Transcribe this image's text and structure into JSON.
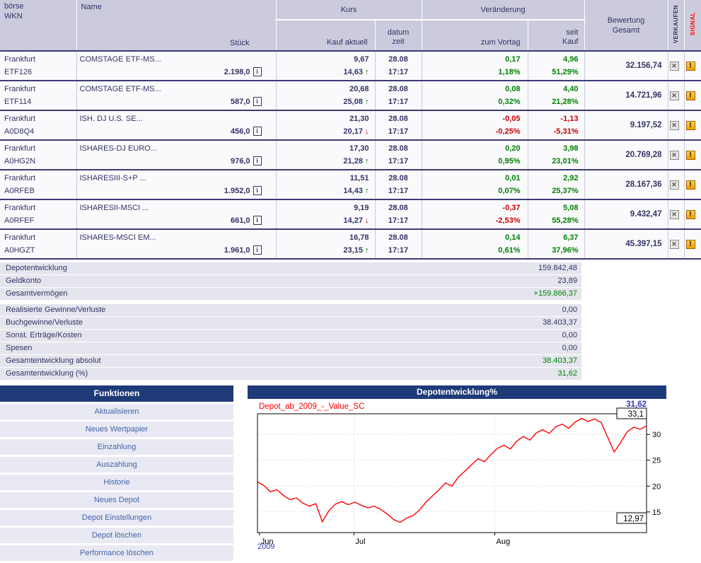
{
  "colors": {
    "accent_navy": "#333366",
    "header_bg": "#cbcbdd",
    "row_separator": "#3b3b75",
    "positive": "#008000",
    "negative": "#cc0000",
    "title_bar_bg": "#1f3a78",
    "chart_line": "#ff0000",
    "chart_value_label": "#3333bb",
    "signal_red": "#ff0000"
  },
  "icons": {
    "info": "i",
    "sell": "✕",
    "signal": "!"
  },
  "table": {
    "header": {
      "boerse": "börse",
      "wkn": "WKN",
      "name": "Name",
      "stueck": "Stück",
      "kurs_group": "Kurs",
      "kauf_aktuell": "Kauf aktuell",
      "datum": "datum",
      "zeit": "zeit",
      "veraenderung_group": "Veränderung",
      "zum_vortag": "zum Vortag",
      "seit": "seit",
      "kauf": "Kauf",
      "bewertung_line1": "Bewertung",
      "bewertung_line2": "Gesamt",
      "verkaufen": "VERKAUFEN",
      "signal": "SIGNAL"
    },
    "rows": [
      {
        "boerse": "Frankfurt",
        "wkn": "ETF126",
        "name": "COMSTAGE ETF-MS...",
        "stueck": "2.198,0",
        "kauf": "9,67",
        "aktuell": "14,63",
        "arrow": "↑",
        "arrow_cls": "up",
        "datum": "28.08",
        "zeit": "17:17",
        "vortag": "0,17",
        "vortag_pct": "1,18%",
        "vortag_cls": "pos",
        "seit": "4,96",
        "seit_pct": "51,29%",
        "seit_cls": "pos",
        "bewertung": "32.156,74"
      },
      {
        "boerse": "Frankfurt",
        "wkn": "ETF114",
        "name": "COMSTAGE ETF-MS...",
        "stueck": "587,0",
        "kauf": "20,68",
        "aktuell": "25,08",
        "arrow": "↑",
        "arrow_cls": "up",
        "datum": "28.08",
        "zeit": "17:17",
        "vortag": "0,08",
        "vortag_pct": "0,32%",
        "vortag_cls": "pos",
        "seit": "4,40",
        "seit_pct": "21,28%",
        "seit_cls": "pos",
        "bewertung": "14.721,96"
      },
      {
        "boerse": "Frankfurt",
        "wkn": "A0D8Q4",
        "name": "ISH. DJ U.S. SE...",
        "stueck": "456,0",
        "kauf": "21,30",
        "aktuell": "20,17",
        "arrow": "↓",
        "arrow_cls": "down",
        "datum": "28.08",
        "zeit": "17:17",
        "vortag": "-0,05",
        "vortag_pct": "-0,25%",
        "vortag_cls": "neg",
        "seit": "-1,13",
        "seit_pct": "-5,31%",
        "seit_cls": "neg",
        "bewertung": "9.197,52"
      },
      {
        "boerse": "Frankfurt",
        "wkn": "A0HG2N",
        "name": "ISHARES-DJ EURO...",
        "stueck": "976,0",
        "kauf": "17,30",
        "aktuell": "21,28",
        "arrow": "↑",
        "arrow_cls": "up",
        "datum": "28.08",
        "zeit": "17:17",
        "vortag": "0,20",
        "vortag_pct": "0,95%",
        "vortag_cls": "pos",
        "seit": "3,98",
        "seit_pct": "23,01%",
        "seit_cls": "pos",
        "bewertung": "20.769,28"
      },
      {
        "boerse": "Frankfurt",
        "wkn": "A0RFEB",
        "name": "ISHARESIII-S+P ...",
        "stueck": "1.952,0",
        "kauf": "11,51",
        "aktuell": "14,43",
        "arrow": "↑",
        "arrow_cls": "up",
        "datum": "28.08",
        "zeit": "17:17",
        "vortag": "0,01",
        "vortag_pct": "0,07%",
        "vortag_cls": "pos",
        "seit": "2,92",
        "seit_pct": "25,37%",
        "seit_cls": "pos",
        "bewertung": "28.167,36"
      },
      {
        "boerse": "Frankfurt",
        "wkn": "A0RFEF",
        "name": "ISHARESII-MSCI ...",
        "stueck": "661,0",
        "kauf": "9,19",
        "aktuell": "14,27",
        "arrow": "↓",
        "arrow_cls": "down",
        "datum": "28.08",
        "zeit": "17:17",
        "vortag": "-0,37",
        "vortag_pct": "-2,53%",
        "vortag_cls": "neg",
        "seit": "5,08",
        "seit_pct": "55,28%",
        "seit_cls": "pos",
        "bewertung": "9.432,47"
      },
      {
        "boerse": "Frankfurt",
        "wkn": "A0HGZT",
        "name": "ISHARES-MSCI EM...",
        "stueck": "1.961,0",
        "kauf": "16,78",
        "aktuell": "23,15",
        "arrow": "↑",
        "arrow_cls": "up",
        "datum": "28.08",
        "zeit": "17:17",
        "vortag": "0,14",
        "vortag_pct": "0,61%",
        "vortag_cls": "pos",
        "seit": "6,37",
        "seit_pct": "37,96%",
        "seit_cls": "pos",
        "bewertung": "45.397,15"
      }
    ]
  },
  "summary": {
    "rows": [
      {
        "label": "Depotentwicklung",
        "value": "159.842,48"
      },
      {
        "label": "Geldkonto",
        "value": "23,89"
      },
      {
        "label": "Gesamtvermögen",
        "value": "+159.866,37",
        "val_cls": "pos",
        "row_cls": "gap-after"
      },
      {
        "label": "Realisierte Gewinne/Verluste",
        "value": "0,00"
      },
      {
        "label": "Buchgewinne/Verluste",
        "value": "38.403,37"
      },
      {
        "label": "Sonst. Erträge/Kosten",
        "value": "0,00"
      },
      {
        "label": "Spesen",
        "value": "0,00"
      },
      {
        "label": "Gesamtentwicklung absolut",
        "value": "38.403,37",
        "val_cls": "pos"
      },
      {
        "label": "Gesamtentwicklung (%)",
        "value": "31,62",
        "val_cls": "pos"
      }
    ]
  },
  "funktionen": {
    "title": "Funktionen",
    "items": [
      {
        "label": "Aktualisieren"
      },
      {
        "label": "Neues Wertpapier"
      },
      {
        "label": "Einzahlung"
      },
      {
        "label": "Auszahlung"
      },
      {
        "label": "Historie"
      },
      {
        "label": "Neues Depot"
      },
      {
        "label": "Depot Einstellungen"
      },
      {
        "label": "Depot löschen"
      },
      {
        "label": "Performance löschen"
      }
    ]
  },
  "chart_data": {
    "type": "line",
    "title": "Depotentwicklung%",
    "series": [
      {
        "name": "Depot_ab_2009_-_Value_SC",
        "color": "#ff0000",
        "values": [
          20.8,
          20.1,
          18.9,
          19.3,
          18.2,
          17.4,
          17.7,
          16.7,
          16.1,
          16.6,
          13.1,
          15.2,
          16.5,
          17.0,
          16.4,
          16.9,
          16.3,
          15.8,
          16.1,
          15.5,
          14.6,
          13.5,
          12.97,
          13.8,
          14.3,
          15.4,
          16.9,
          18.1,
          19.3,
          20.6,
          20.0,
          21.8,
          22.9,
          24.1,
          25.3,
          24.7,
          26.1,
          27.3,
          27.9,
          27.2,
          28.7,
          29.6,
          28.9,
          30.3,
          30.9,
          30.2,
          31.5,
          32.0,
          31.2,
          32.4,
          33.1,
          32.5,
          33.0,
          32.3,
          29.5,
          26.6,
          28.4,
          30.5,
          31.4,
          31.0,
          31.62
        ]
      }
    ],
    "x_ticks": [
      {
        "label": "Jun",
        "pos": 0.005
      },
      {
        "label": "Jul",
        "pos": 0.248
      },
      {
        "label": "Aug",
        "pos": 0.61
      }
    ],
    "y_ticks": [
      15,
      20,
      25,
      30
    ],
    "ylim": [
      11,
      34
    ],
    "grid": true,
    "legend_position": "top-left",
    "last_label": "31,62",
    "max_label": "33,1",
    "min_label": "12,97",
    "year_label": "2009"
  }
}
